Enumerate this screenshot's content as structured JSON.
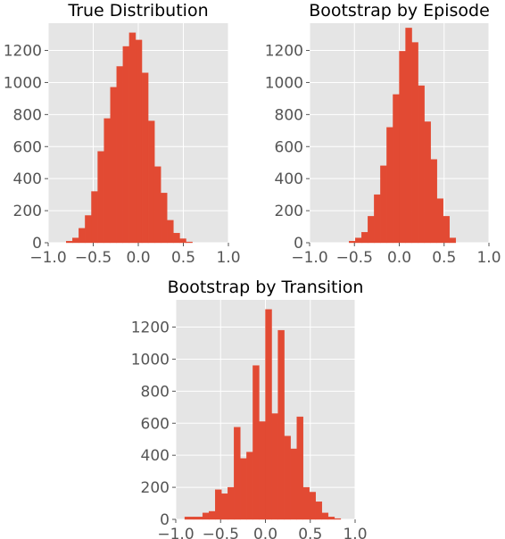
{
  "chart_data": [
    {
      "type": "histogram",
      "title": "True Distribution",
      "xlim": [
        -1.0,
        1.0
      ],
      "ylim": [
        0,
        1370
      ],
      "xticks": [
        -1.0,
        -0.5,
        0.0,
        0.5,
        1.0
      ],
      "xtick_labels": [
        "−1.0",
        "−0.5",
        "0.0",
        "0.5",
        "1.0"
      ],
      "yticks": [
        0,
        200,
        400,
        600,
        800,
        1000,
        1200
      ],
      "ytick_labels": [
        "0",
        "200",
        "400",
        "600",
        "800",
        "1000",
        "1200"
      ],
      "grid": true,
      "color": "#e24a33",
      "bins": [
        {
          "x0": -0.8,
          "x1": -0.73,
          "count": 10
        },
        {
          "x0": -0.73,
          "x1": -0.66,
          "count": 30
        },
        {
          "x0": -0.66,
          "x1": -0.59,
          "count": 90
        },
        {
          "x0": -0.59,
          "x1": -0.52,
          "count": 170
        },
        {
          "x0": -0.52,
          "x1": -0.45,
          "count": 320
        },
        {
          "x0": -0.45,
          "x1": -0.38,
          "count": 570
        },
        {
          "x0": -0.38,
          "x1": -0.31,
          "count": 775
        },
        {
          "x0": -0.31,
          "x1": -0.24,
          "count": 970
        },
        {
          "x0": -0.24,
          "x1": -0.17,
          "count": 1100
        },
        {
          "x0": -0.17,
          "x1": -0.1,
          "count": 1225
        },
        {
          "x0": -0.1,
          "x1": -0.03,
          "count": 1310
        },
        {
          "x0": -0.03,
          "x1": 0.04,
          "count": 1265
        },
        {
          "x0": 0.04,
          "x1": 0.11,
          "count": 1060
        },
        {
          "x0": 0.11,
          "x1": 0.18,
          "count": 760
        },
        {
          "x0": 0.18,
          "x1": 0.25,
          "count": 475
        },
        {
          "x0": 0.25,
          "x1": 0.32,
          "count": 310
        },
        {
          "x0": 0.32,
          "x1": 0.39,
          "count": 140
        },
        {
          "x0": 0.39,
          "x1": 0.46,
          "count": 60
        },
        {
          "x0": 0.46,
          "x1": 0.53,
          "count": 25
        },
        {
          "x0": 0.53,
          "x1": 0.6,
          "count": 5
        }
      ]
    },
    {
      "type": "histogram",
      "title": "Bootstrap by Episode",
      "xlim": [
        -1.0,
        1.0
      ],
      "ylim": [
        0,
        1370
      ],
      "xticks": [
        -1.0,
        -0.5,
        0.0,
        0.5,
        1.0
      ],
      "xtick_labels": [
        "−1.0",
        "−0.5",
        "0.0",
        "0.5",
        "1.0"
      ],
      "yticks": [
        0,
        200,
        400,
        600,
        800,
        1000,
        1200
      ],
      "ytick_labels": [
        "0",
        "200",
        "400",
        "600",
        "800",
        "1000",
        "1200"
      ],
      "grid": true,
      "color": "#e24a33",
      "bins": [
        {
          "x0": -0.56,
          "x1": -0.49,
          "count": 10
        },
        {
          "x0": -0.49,
          "x1": -0.42,
          "count": 30
        },
        {
          "x0": -0.42,
          "x1": -0.35,
          "count": 65
        },
        {
          "x0": -0.35,
          "x1": -0.28,
          "count": 165
        },
        {
          "x0": -0.28,
          "x1": -0.21,
          "count": 300
        },
        {
          "x0": -0.21,
          "x1": -0.14,
          "count": 480
        },
        {
          "x0": -0.14,
          "x1": -0.07,
          "count": 720
        },
        {
          "x0": -0.07,
          "x1": 0.0,
          "count": 925
        },
        {
          "x0": 0.0,
          "x1": 0.07,
          "count": 1195
        },
        {
          "x0": 0.07,
          "x1": 0.14,
          "count": 1340
        },
        {
          "x0": 0.14,
          "x1": 0.21,
          "count": 1250
        },
        {
          "x0": 0.21,
          "x1": 0.28,
          "count": 980
        },
        {
          "x0": 0.28,
          "x1": 0.35,
          "count": 755
        },
        {
          "x0": 0.35,
          "x1": 0.42,
          "count": 520
        },
        {
          "x0": 0.42,
          "x1": 0.49,
          "count": 275
        },
        {
          "x0": 0.49,
          "x1": 0.56,
          "count": 165
        },
        {
          "x0": 0.56,
          "x1": 0.63,
          "count": 30
        }
      ]
    },
    {
      "type": "histogram",
      "title": "Bootstrap by Transition",
      "xlim": [
        -1.0,
        1.0
      ],
      "ylim": [
        0,
        1370
      ],
      "xticks": [
        -1.0,
        -0.5,
        0.0,
        0.5,
        1.0
      ],
      "xtick_labels": [
        "−1.0",
        "−0.5",
        "0.0",
        "0.5",
        "1.0"
      ],
      "yticks": [
        0,
        200,
        400,
        600,
        800,
        1000,
        1200
      ],
      "ytick_labels": [
        "0",
        "200",
        "400",
        "600",
        "800",
        "1000",
        "1200"
      ],
      "grid": true,
      "color": "#e24a33",
      "bins": [
        {
          "x0": -0.9,
          "x1": -0.8,
          "count": 15
        },
        {
          "x0": -0.8,
          "x1": -0.7,
          "count": 15
        },
        {
          "x0": -0.7,
          "x1": -0.63,
          "count": 40
        },
        {
          "x0": -0.63,
          "x1": -0.56,
          "count": 50
        },
        {
          "x0": -0.56,
          "x1": -0.49,
          "count": 185
        },
        {
          "x0": -0.49,
          "x1": -0.42,
          "count": 160
        },
        {
          "x0": -0.42,
          "x1": -0.35,
          "count": 200
        },
        {
          "x0": -0.35,
          "x1": -0.28,
          "count": 575
        },
        {
          "x0": -0.28,
          "x1": -0.21,
          "count": 380
        },
        {
          "x0": -0.21,
          "x1": -0.14,
          "count": 420
        },
        {
          "x0": -0.14,
          "x1": -0.07,
          "count": 960
        },
        {
          "x0": -0.07,
          "x1": 0.0,
          "count": 610
        },
        {
          "x0": 0.0,
          "x1": 0.07,
          "count": 1310
        },
        {
          "x0": 0.07,
          "x1": 0.14,
          "count": 660
        },
        {
          "x0": 0.14,
          "x1": 0.21,
          "count": 1180
        },
        {
          "x0": 0.21,
          "x1": 0.28,
          "count": 520
        },
        {
          "x0": 0.28,
          "x1": 0.35,
          "count": 440
        },
        {
          "x0": 0.35,
          "x1": 0.42,
          "count": 640
        },
        {
          "x0": 0.42,
          "x1": 0.49,
          "count": 200
        },
        {
          "x0": 0.49,
          "x1": 0.56,
          "count": 170
        },
        {
          "x0": 0.56,
          "x1": 0.63,
          "count": 110
        },
        {
          "x0": 0.63,
          "x1": 0.7,
          "count": 40
        },
        {
          "x0": 0.7,
          "x1": 0.77,
          "count": 15
        },
        {
          "x0": 0.77,
          "x1": 0.84,
          "count": 5
        }
      ]
    }
  ]
}
